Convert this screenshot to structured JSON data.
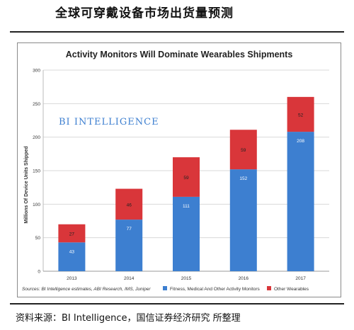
{
  "header": {
    "title": "全球可穿戴设备市场出货量预测"
  },
  "footer": {
    "source": "资料来源：BI Intelligence，国信证券经济研究 所整理"
  },
  "chart_data": {
    "type": "bar",
    "stacked": true,
    "title": "Activity Monitors Will Dominate Wearables Shipments",
    "watermark": "BI INTELLIGENCE",
    "ylabel": "Millions Of Device Units Shipped",
    "xlabel": "",
    "ylim": [
      0,
      300
    ],
    "yticks": [
      0,
      50,
      100,
      150,
      200,
      250,
      300
    ],
    "grid": true,
    "categories": [
      "2013",
      "2014",
      "2015",
      "2016",
      "2017"
    ],
    "series": [
      {
        "name": "Fitness, Medical And Other Activity Monitors",
        "color": "#3d7fd0",
        "values": [
          43,
          77,
          111,
          152,
          208
        ]
      },
      {
        "name": "Other Wearables",
        "color": "#d9363a",
        "values": [
          27,
          46,
          59,
          59,
          52
        ]
      }
    ],
    "source_note": "Sources: BI Intelligence estimates, ABI Research, IMS, Juniper",
    "legend_position": "bottom-right"
  }
}
